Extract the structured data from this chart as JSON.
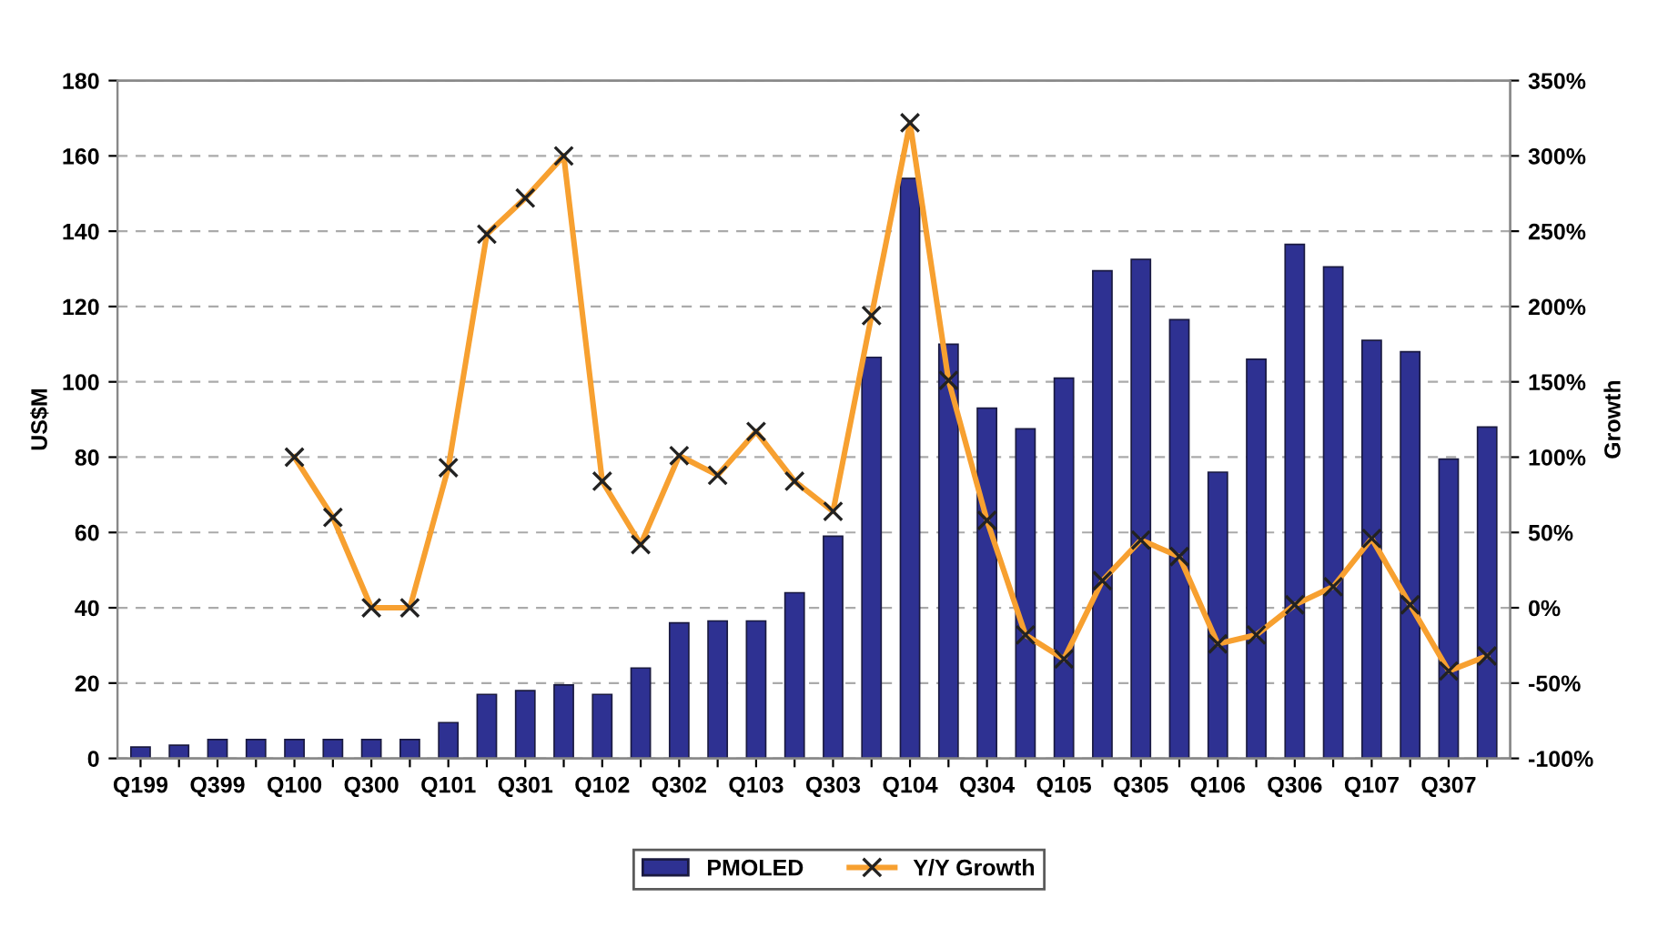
{
  "chart_data": {
    "type": "bar",
    "categories": [
      "Q199",
      null,
      "Q399",
      null,
      "Q100",
      null,
      "Q300",
      null,
      "Q101",
      null,
      "Q301",
      null,
      "Q102",
      null,
      "Q302",
      null,
      "Q103",
      null,
      "Q303",
      null,
      "Q104",
      null,
      "Q304",
      null,
      "Q105",
      null,
      "Q305",
      null,
      "Q106",
      null,
      "Q306",
      null,
      "Q107",
      null,
      "Q307",
      null
    ],
    "series": [
      {
        "name": "PMOLED",
        "color": "#2e3192",
        "values": [
          3,
          3.5,
          5,
          5,
          5,
          5,
          5,
          5,
          9.5,
          17,
          18,
          19.5,
          17,
          24,
          36,
          36.5,
          36.5,
          44,
          59,
          106.5,
          154,
          110,
          93,
          87.5,
          101,
          129.5,
          132.5,
          116.5,
          76,
          106,
          136.5,
          130.5,
          111,
          108,
          79.5,
          88
        ]
      },
      {
        "name": "Y/Y Growth",
        "type": "line",
        "axis": "y2",
        "color": "#f7a030",
        "marker": "cross",
        "values": [
          null,
          null,
          null,
          null,
          100,
          60,
          0,
          0,
          93,
          248,
          272,
          300,
          84,
          42,
          101,
          88,
          117,
          84,
          64,
          194,
          322,
          151,
          58,
          -18,
          -34,
          18,
          45,
          34,
          -24,
          -18,
          2,
          14,
          46,
          2,
          -42,
          -32
        ]
      }
    ],
    "ylabel": "US$M",
    "y2label": "Growth",
    "ylim": [
      0,
      180
    ],
    "yticks": [
      0,
      20,
      40,
      60,
      80,
      100,
      120,
      140,
      160,
      180
    ],
    "y2lim": [
      -100,
      350
    ],
    "y2ticks": [
      {
        "value": -100,
        "label": "-100%"
      },
      {
        "value": -50,
        "label": "-50%"
      },
      {
        "value": 0,
        "label": "0%"
      },
      {
        "value": 50,
        "label": "50%"
      },
      {
        "value": 100,
        "label": "100%"
      },
      {
        "value": 150,
        "label": "150%"
      },
      {
        "value": 200,
        "label": "200%"
      },
      {
        "value": 250,
        "label": "250%"
      },
      {
        "value": 300,
        "label": "300%"
      },
      {
        "value": 350,
        "label": "350%"
      }
    ],
    "grid": "y",
    "legend": "bottom"
  }
}
